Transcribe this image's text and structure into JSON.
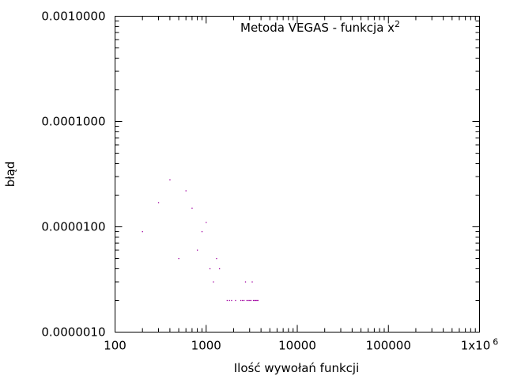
{
  "chart_data": {
    "type": "scatter",
    "title_main": "Metoda VEGAS - funkcja x",
    "title_sup": "2",
    "xlabel": "Ilość wywołań funkcji",
    "ylabel": "błąd",
    "xscale": "log",
    "yscale": "log",
    "xlim": [
      100,
      1000000
    ],
    "ylim": [
      1e-06,
      0.001
    ],
    "grid": false,
    "xticks": [
      {
        "value": 100,
        "label": "100"
      },
      {
        "value": 1000,
        "label": "1000"
      },
      {
        "value": 10000,
        "label": "10000"
      },
      {
        "value": 100000,
        "label": "100000"
      },
      {
        "value": 1000000,
        "label": "1x10",
        "sup": "6"
      }
    ],
    "yticks": [
      {
        "value": 1e-06,
        "label": "0.0000010"
      },
      {
        "value": 1e-05,
        "label": "0.0000100"
      },
      {
        "value": 0.0001,
        "label": "0.0001000"
      },
      {
        "value": 0.001,
        "label": "0.0010000"
      }
    ],
    "point_color": "#a000a0",
    "points": [
      {
        "x": 200,
        "y": 9e-06
      },
      {
        "x": 300,
        "y": 1.7e-05
      },
      {
        "x": 400,
        "y": 2.8e-05
      },
      {
        "x": 500,
        "y": 5e-06
      },
      {
        "x": 600,
        "y": 2.2e-05
      },
      {
        "x": 700,
        "y": 1.5e-05
      },
      {
        "x": 800,
        "y": 6e-06
      },
      {
        "x": 900,
        "y": 9e-06
      },
      {
        "x": 1000,
        "y": 1.1e-05
      },
      {
        "x": 1100,
        "y": 4e-06
      },
      {
        "x": 1200,
        "y": 3e-06
      },
      {
        "x": 1300,
        "y": 5e-06
      },
      {
        "x": 1400,
        "y": 4e-06
      },
      {
        "x": 1700,
        "y": 2e-06
      },
      {
        "x": 1800,
        "y": 2e-06
      },
      {
        "x": 1900,
        "y": 2e-06
      },
      {
        "x": 2100,
        "y": 2e-06
      },
      {
        "x": 2400,
        "y": 2e-06
      },
      {
        "x": 2500,
        "y": 2e-06
      },
      {
        "x": 2600,
        "y": 2e-06
      },
      {
        "x": 2700,
        "y": 3e-06
      },
      {
        "x": 2800,
        "y": 2e-06
      },
      {
        "x": 2900,
        "y": 2e-06
      },
      {
        "x": 3000,
        "y": 2e-06
      },
      {
        "x": 3100,
        "y": 2e-06
      },
      {
        "x": 3200,
        "y": 3e-06
      },
      {
        "x": 3300,
        "y": 2e-06
      },
      {
        "x": 3400,
        "y": 2e-06
      },
      {
        "x": 3500,
        "y": 2e-06
      },
      {
        "x": 3600,
        "y": 2e-06
      },
      {
        "x": 3700,
        "y": 2e-06
      }
    ]
  }
}
